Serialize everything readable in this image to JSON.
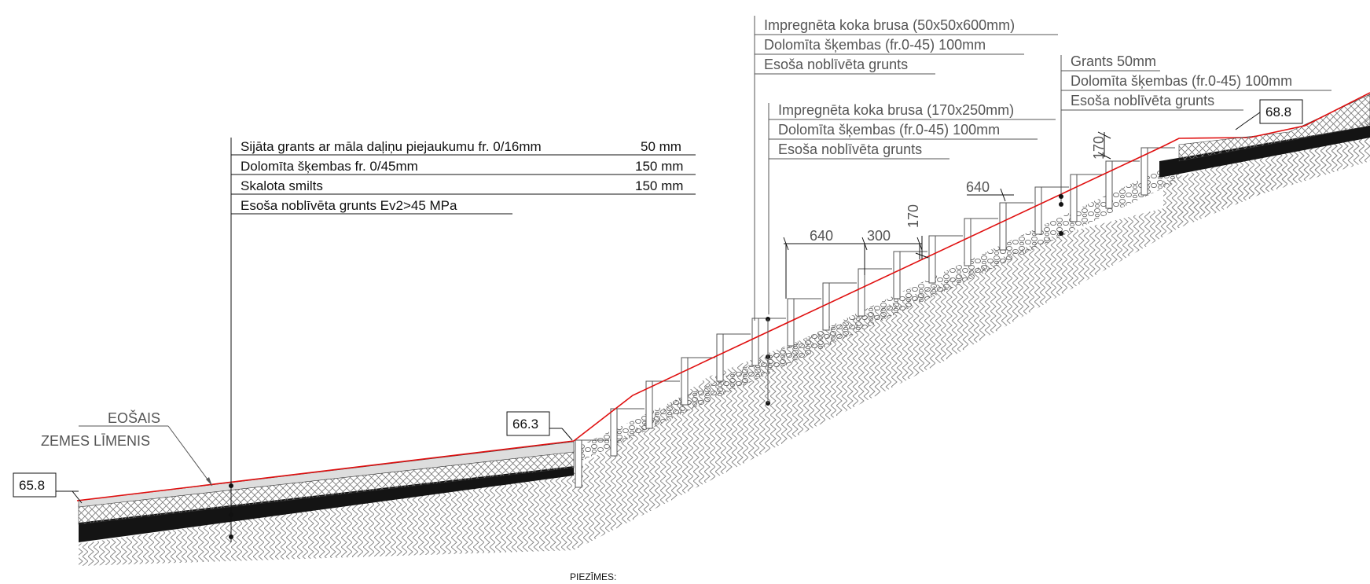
{
  "drawing": {
    "ground_label": {
      "line1": "EOŠAIS",
      "line2": "ZEMES LĪMENIS"
    },
    "elevations": {
      "left": "65.8",
      "middle": "66.3",
      "right": "68.8"
    },
    "path_layers": [
      {
        "name": "Sijāta grants ar māla daļiņu piejaukumu fr. 0/16mm",
        "thickness": "50 mm"
      },
      {
        "name": "Dolomīta šķembas fr. 0/45mm",
        "thickness": "150 mm"
      },
      {
        "name": "Skalota smilts",
        "thickness": "150 mm"
      },
      {
        "name": "Esoša noblīvēta grunts Ev2>45 MPa",
        "thickness": ""
      }
    ],
    "steps_top_labels": [
      "Impregnēta koka brusa (50x50x600mm)",
      "Dolomīta šķembas (fr.0-45) 100mm",
      "Esoša noblīvēta grunts"
    ],
    "steps_mid_labels": [
      "Impregnēta koka brusa (170x250mm)",
      "Dolomīta šķembas (fr.0-45) 100mm",
      "Esoša noblīvēta grunts"
    ],
    "upper_path_labels": [
      "Grants 50mm",
      "Dolomīta šķembas (fr.0-45) 100mm",
      "Esoša noblīvēta grunts"
    ],
    "dimensions": {
      "tread_a": "640",
      "tread_gap": "300",
      "riser_a": "170",
      "tread_b": "640",
      "riser_b": "170"
    },
    "notes_title": "PIEZĪMES:",
    "colors": {
      "grade_line": "#e01010",
      "hatch": "#666666",
      "ink": "#111111"
    }
  }
}
